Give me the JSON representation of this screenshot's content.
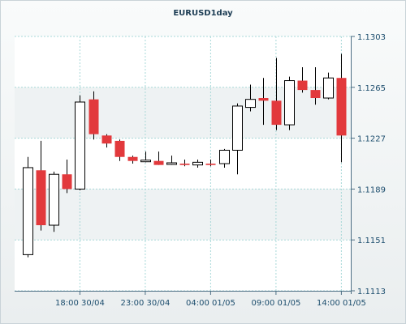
{
  "chart_data": {
    "type": "candlestick",
    "title": "EURUSD1day",
    "colors": {
      "up_fill": "#ffffff",
      "up_stroke": "#000000",
      "down_fill": "#e2393c",
      "wick": "#000000",
      "grid": "#a8d8d8",
      "axis": "#4d6e84",
      "band": "#eef2f3"
    },
    "grid": true,
    "ylim": [
      1.1113,
      1.1303
    ],
    "y_ticks": [
      "1.1113",
      "1.1151",
      "1.1189",
      "1.1227",
      "1.1265",
      "1.1303"
    ],
    "x_ticks": [
      {
        "label": "18:00 30/04",
        "index": 4
      },
      {
        "label": "23:00 30/04",
        "index": 9
      },
      {
        "label": "04:00 01/05",
        "index": 14
      },
      {
        "label": "09:00 01/05",
        "index": 19
      },
      {
        "label": "14:00 01/05",
        "index": 24
      }
    ],
    "candles": [
      {
        "open": 1.114,
        "high": 1.1213,
        "low": 1.1138,
        "close": 1.1205
      },
      {
        "open": 1.1203,
        "high": 1.1225,
        "low": 1.1158,
        "close": 1.1162
      },
      {
        "open": 1.1162,
        "high": 1.1202,
        "low": 1.1157,
        "close": 1.12
      },
      {
        "open": 1.12,
        "high": 1.1211,
        "low": 1.1186,
        "close": 1.1189
      },
      {
        "open": 1.1189,
        "high": 1.1259,
        "low": 1.1188,
        "close": 1.1254
      },
      {
        "open": 1.1256,
        "high": 1.1262,
        "low": 1.1226,
        "close": 1.123
      },
      {
        "open": 1.1229,
        "high": 1.123,
        "low": 1.122,
        "close": 1.1223
      },
      {
        "open": 1.1225,
        "high": 1.1226,
        "low": 1.121,
        "close": 1.1213
      },
      {
        "open": 1.1213,
        "high": 1.1214,
        "low": 1.1208,
        "close": 1.121
      },
      {
        "open": 1.121,
        "high": 1.1217,
        "low": 1.1209,
        "close": 1.121
      },
      {
        "open": 1.121,
        "high": 1.1217,
        "low": 1.1207,
        "close": 1.1207
      },
      {
        "open": 1.1208,
        "high": 1.1214,
        "low": 1.1207,
        "close": 1.1208
      },
      {
        "open": 1.1208,
        "high": 1.1211,
        "low": 1.1206,
        "close": 1.1207
      },
      {
        "open": 1.1207,
        "high": 1.1211,
        "low": 1.1205,
        "close": 1.1209
      },
      {
        "open": 1.1208,
        "high": 1.1211,
        "low": 1.1206,
        "close": 1.1207
      },
      {
        "open": 1.1208,
        "high": 1.1219,
        "low": 1.1205,
        "close": 1.1218
      },
      {
        "open": 1.1218,
        "high": 1.1253,
        "low": 1.12,
        "close": 1.1251
      },
      {
        "open": 1.125,
        "high": 1.1267,
        "low": 1.1247,
        "close": 1.1256
      },
      {
        "open": 1.1257,
        "high": 1.1272,
        "low": 1.1237,
        "close": 1.1255
      },
      {
        "open": 1.1255,
        "high": 1.1287,
        "low": 1.1233,
        "close": 1.1237
      },
      {
        "open": 1.1237,
        "high": 1.1273,
        "low": 1.1233,
        "close": 1.127
      },
      {
        "open": 1.127,
        "high": 1.128,
        "low": 1.1261,
        "close": 1.1263
      },
      {
        "open": 1.1263,
        "high": 1.128,
        "low": 1.1252,
        "close": 1.1257
      },
      {
        "open": 1.1257,
        "high": 1.1276,
        "low": 1.1256,
        "close": 1.1272
      },
      {
        "open": 1.1272,
        "high": 1.129,
        "low": 1.1209,
        "close": 1.1229
      }
    ]
  }
}
